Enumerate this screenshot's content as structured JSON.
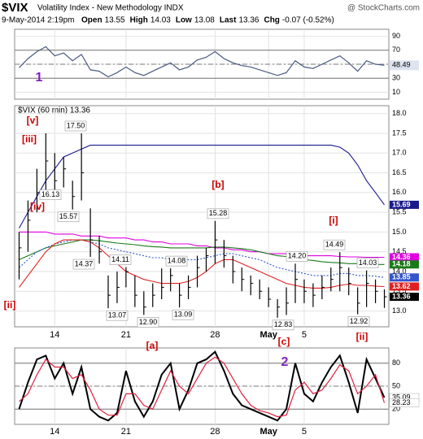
{
  "chart_data": {
    "type": "ohlc",
    "title": "$VIX",
    "subtitle": "Volatility Index - New Methodology INDX",
    "source": "@ StockCharts.com",
    "date": "9-May-2014 2:19pm",
    "quote": [
      {
        "label": "Open",
        "value": "13.55"
      },
      {
        "label": "High",
        "value": "14.03"
      },
      {
        "label": "Low",
        "value": "13.08"
      },
      {
        "label": "Last",
        "value": "13.36"
      },
      {
        "label": "Chg",
        "value": "-0.07 (-0.52%)"
      }
    ],
    "legend_label": "$VIX (60 min) 13.36",
    "categories": [
      null,
      null,
      null,
      null,
      "14",
      null,
      null,
      null,
      null,
      null,
      null,
      null,
      "21",
      null,
      null,
      null,
      null,
      null,
      null,
      null,
      null,
      null,
      "28",
      null,
      null,
      null,
      null,
      null,
      "May",
      null,
      null,
      null,
      "5",
      null,
      null,
      null,
      null,
      null,
      null,
      null,
      null,
      null
    ],
    "high": [
      15.0,
      15.8,
      16.6,
      17.5,
      17.0,
      16.9,
      16.3,
      17.5,
      15.6,
      14.9,
      13.9,
      14.0,
      14.11,
      13.9,
      13.5,
      13.7,
      14.08,
      14.08,
      13.7,
      13.9,
      14.4,
      14.6,
      15.28,
      14.8,
      14.4,
      14.1,
      13.9,
      13.8,
      13.6,
      13.3,
      13.6,
      14.2,
      13.8,
      13.7,
      13.9,
      14.1,
      14.49,
      14.1,
      13.6,
      14.03,
      13.8,
      13.55
    ],
    "low": [
      13.8,
      14.5,
      15.5,
      16.0,
      15.9,
      16.13,
      15.57,
      15.8,
      14.37,
      14.2,
      13.07,
      13.2,
      13.6,
      13.1,
      12.9,
      13.1,
      13.3,
      13.5,
      13.09,
      13.3,
      13.6,
      14.0,
      14.2,
      14.1,
      13.7,
      13.5,
      13.4,
      13.3,
      13.1,
      12.83,
      12.9,
      13.2,
      13.2,
      13.1,
      13.3,
      13.5,
      13.5,
      13.4,
      12.92,
      13.1,
      13.2,
      13.08
    ],
    "close": [
      14.6,
      15.3,
      16.0,
      16.8,
      16.3,
      16.6,
      15.9,
      16.5,
      14.8,
      14.5,
      13.4,
      13.6,
      14.0,
      13.4,
      13.1,
      13.4,
      13.6,
      13.9,
      13.4,
      13.6,
      14.1,
      14.4,
      14.8,
      14.4,
      14.0,
      13.8,
      13.7,
      13.5,
      13.3,
      13.1,
      13.2,
      13.8,
      13.5,
      13.4,
      13.6,
      13.8,
      14.1,
      13.7,
      13.2,
      13.7,
      13.5,
      13.36
    ],
    "series": [
      {
        "color": "#1a1a8c",
        "values": [
          15.1,
          15.5,
          15.9,
          16.3,
          16.6,
          16.9,
          17.0,
          17.1,
          17.2,
          17.2,
          17.2,
          17.2,
          17.2,
          17.2,
          17.2,
          17.2,
          17.2,
          17.2,
          17.2,
          17.2,
          17.2,
          17.2,
          17.2,
          17.2,
          17.2,
          17.2,
          17.2,
          17.2,
          17.2,
          17.2,
          17.2,
          17.2,
          17.2,
          17.2,
          17.2,
          17.2,
          17.15,
          17.0,
          16.7,
          16.3,
          16.0,
          15.69
        ]
      },
      {
        "color": "#e000e0",
        "values": [
          15.0,
          15.0,
          15.0,
          15.0,
          14.95,
          14.95,
          14.95,
          14.9,
          14.9,
          14.9,
          14.85,
          14.85,
          14.85,
          14.8,
          14.8,
          14.75,
          14.75,
          14.7,
          14.7,
          14.7,
          14.65,
          14.65,
          14.6,
          14.6,
          14.55,
          14.55,
          14.5,
          14.5,
          14.45,
          14.45,
          14.45,
          14.4,
          14.4,
          14.4,
          14.4,
          14.4,
          14.38,
          14.37,
          14.37,
          14.36,
          14.36,
          14.36
        ]
      },
      {
        "color": "#1a7a1a",
        "values": [
          14.3,
          14.4,
          14.5,
          14.6,
          14.65,
          14.7,
          14.75,
          14.8,
          14.8,
          14.78,
          14.75,
          14.72,
          14.7,
          14.68,
          14.65,
          14.63,
          14.62,
          14.6,
          14.6,
          14.6,
          14.6,
          14.6,
          14.62,
          14.62,
          14.6,
          14.58,
          14.55,
          14.5,
          14.45,
          14.4,
          14.38,
          14.35,
          14.3,
          14.28,
          14.25,
          14.23,
          14.22,
          14.2,
          14.2,
          14.19,
          14.18,
          14.18
        ]
      },
      {
        "color": "#3355cc",
        "dashed": true,
        "values": [
          14.1,
          14.3,
          14.5,
          14.6,
          14.7,
          14.75,
          14.8,
          14.8,
          14.75,
          14.7,
          14.6,
          14.55,
          14.5,
          14.45,
          14.4,
          14.35,
          14.35,
          14.3,
          14.3,
          14.3,
          14.3,
          14.35,
          14.4,
          14.45,
          14.45,
          14.4,
          14.35,
          14.3,
          14.2,
          14.1,
          14.05,
          14.0,
          13.95,
          13.9,
          13.9,
          13.9,
          13.95,
          13.95,
          13.9,
          13.9,
          13.88,
          13.85
        ]
      },
      {
        "color": "#e02020",
        "values": [
          13.6,
          13.9,
          14.2,
          14.5,
          14.7,
          14.8,
          14.8,
          14.8,
          14.75,
          14.6,
          14.4,
          14.2,
          14.0,
          13.9,
          13.8,
          13.75,
          13.7,
          13.7,
          13.7,
          13.75,
          13.85,
          14.0,
          14.2,
          14.3,
          14.3,
          14.2,
          14.1,
          14.0,
          13.9,
          13.8,
          13.7,
          13.65,
          13.6,
          13.58,
          13.58,
          13.6,
          13.65,
          13.68,
          13.65,
          13.65,
          13.63,
          13.62
        ]
      }
    ],
    "ylim": [
      12.6,
      18.2
    ],
    "yticks": [
      {
        "value": 13,
        "label": "13.0"
      },
      13.5,
      {
        "value": 14,
        "label": "14.0"
      },
      14.5,
      {
        "value": 15,
        "label": "15.0"
      },
      15.5,
      {
        "value": 16,
        "label": "16.0"
      },
      16.5,
      {
        "value": 17,
        "label": "17.0"
      },
      17.5,
      {
        "value": 18,
        "label": "18.0"
      }
    ],
    "grid": true,
    "price_labels": [
      {
        "value": 17.5,
        "label": "17.50"
      },
      {
        "value": 16.13,
        "label": "16.13"
      },
      {
        "value": 15.57,
        "label": "15.57"
      },
      {
        "value": 14.37,
        "label": "14.37"
      },
      {
        "value": 14.11,
        "label": "14.11"
      },
      {
        "value": 13.07,
        "label": "13.07"
      },
      {
        "value": 12.9,
        "label": "12.90"
      },
      {
        "value": 14.08,
        "label": "14.08"
      },
      {
        "value": 13.09,
        "label": "13.09"
      },
      {
        "value": 15.28,
        "label": "15.28"
      },
      {
        "value": 14.2,
        "label": "14.20"
      },
      {
        "value": 12.83,
        "label": "12.83"
      },
      {
        "value": 14.49,
        "label": "14.49"
      },
      {
        "value": 14.03,
        "label": "14.03"
      },
      {
        "value": 12.92,
        "label": "12.92"
      }
    ],
    "wave_labels": [
      "[v]",
      "[iii]",
      "[iv]",
      "[ii]",
      "[b]",
      "[i]",
      "[a]",
      "[c]",
      "[ii]",
      "1",
      "2"
    ],
    "rsi": {
      "values": [
        45,
        58,
        68,
        75,
        62,
        66,
        55,
        64,
        42,
        40,
        32,
        38,
        46,
        38,
        34,
        40,
        46,
        52,
        42,
        46,
        56,
        60,
        68,
        58,
        52,
        48,
        46,
        42,
        38,
        34,
        38,
        55,
        46,
        44,
        50,
        56,
        62,
        52,
        40,
        55,
        50,
        48.49
      ],
      "color": "#4a5a80",
      "ylim": [
        0,
        100
      ],
      "yticks": [
        10,
        30,
        50,
        70,
        90
      ]
    },
    "stochastic": {
      "series": [
        {
          "color": "#000000",
          "values": [
            20,
            55,
            85,
            90,
            60,
            80,
            40,
            75,
            20,
            10,
            5,
            15,
            70,
            30,
            10,
            30,
            65,
            80,
            20,
            45,
            80,
            85,
            95,
            70,
            40,
            25,
            20,
            15,
            10,
            5,
            20,
            80,
            40,
            30,
            55,
            75,
            90,
            55,
            15,
            85,
            60,
            35.09
          ]
        },
        {
          "color": "#e02040",
          "values": [
            30,
            40,
            65,
            85,
            75,
            75,
            60,
            65,
            45,
            20,
            12,
            12,
            40,
            40,
            25,
            20,
            45,
            70,
            50,
            40,
            60,
            80,
            88,
            80,
            60,
            40,
            25,
            18,
            15,
            10,
            12,
            45,
            55,
            40,
            45,
            60,
            78,
            70,
            40,
            50,
            65,
            28.23
          ]
        }
      ],
      "ylim": [
        0,
        100
      ],
      "yticks": [
        20,
        50,
        80
      ]
    }
  }
}
